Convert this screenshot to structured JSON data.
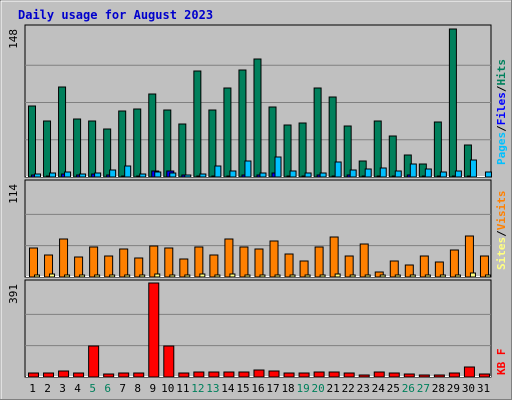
{
  "colors": {
    "frame_bg": "#c0c0c0",
    "plot_bg": "#c0c0c0",
    "title": "#0000cc",
    "hits": "#00805c",
    "files": "#0000ff",
    "pages": "#00c0ff",
    "visits": "#ff8000",
    "sites": "#ffff80",
    "kbytes": "#ff0000",
    "weekday": "#000000",
    "weekend": "#00805c",
    "separator": "#000000"
  },
  "chart_data": {
    "type": "bar",
    "title": "Daily usage for August 2023",
    "x": [
      "1",
      "2",
      "3",
      "4",
      "5",
      "6",
      "7",
      "8",
      "9",
      "10",
      "11",
      "12",
      "13",
      "14",
      "15",
      "16",
      "17",
      "18",
      "19",
      "20",
      "21",
      "22",
      "23",
      "24",
      "25",
      "26",
      "27",
      "28",
      "29",
      "30",
      "31"
    ],
    "weekend": [
      5,
      6,
      12,
      13,
      19,
      20,
      26,
      27
    ],
    "panels": [
      {
        "id": "hits",
        "ymax_label": "148",
        "ylim": [
          0,
          148
        ],
        "legend": [
          "Pages",
          "/",
          "Files",
          "/",
          "Hits"
        ],
        "series": [
          {
            "name": "Hits",
            "values": [
              71,
              56,
              89,
              58,
              56,
              48,
              66,
              68,
              82,
              67,
              53,
              105,
              67,
              88,
              106,
              117,
              70,
              52,
              54,
              88,
              79,
              51,
              16,
              56,
              41,
              22,
              13,
              55,
              147,
              32,
              0
            ]
          },
          {
            "name": "Files",
            "values": [
              2,
              1,
              3,
              2,
              3,
              2,
              1,
              1,
              6,
              6,
              2,
              1,
              1,
              1,
              2,
              2,
              4,
              1,
              1,
              2,
              1,
              2,
              1,
              1,
              1,
              2,
              1,
              1,
              1,
              1,
              0
            ]
          },
          {
            "name": "Pages",
            "values": [
              3,
              4,
              5,
              3,
              4,
              7,
              11,
              3,
              5,
              4,
              2,
              3,
              11,
              6,
              16,
              4,
              20,
              6,
              4,
              4,
              15,
              7,
              8,
              9,
              6,
              13,
              8,
              5,
              6,
              17,
              5
            ]
          }
        ]
      },
      {
        "id": "visits",
        "ymax_label": "114",
        "ylim": [
          0,
          114
        ],
        "legend": [
          "Sites",
          "/",
          "Visits"
        ],
        "series": [
          {
            "name": "Visits",
            "values": [
              35,
              27,
              46,
              24,
              36,
              26,
              34,
              23,
              38,
              35,
              22,
              36,
              27,
              46,
              36,
              34,
              44,
              28,
              19,
              36,
              49,
              25,
              40,
              6,
              20,
              15,
              26,
              18,
              33,
              50,
              25
            ]
          },
          {
            "name": "Sites",
            "values": [
              3,
              4,
              3,
              2,
              3,
              3,
              3,
              2,
              4,
              3,
              2,
              4,
              3,
              4,
              3,
              3,
              3,
              3,
              2,
              3,
              4,
              3,
              3,
              2,
              3,
              2,
              3,
              2,
              3,
              5,
              3
            ]
          }
        ]
      },
      {
        "id": "kbytes",
        "ymax_label": "391",
        "ylim": [
          0,
          391
        ],
        "legend": [
          "KB",
          "F"
        ],
        "series": [
          {
            "name": "KBytes",
            "values": [
              18,
              16,
              24,
              15,
              128,
              14,
              16,
              16,
              390,
              130,
              15,
              19,
              22,
              19,
              21,
              28,
              25,
              18,
              17,
              22,
              19,
              16,
              8,
              20,
              16,
              14,
              10,
              9,
              16,
              43,
              11
            ]
          }
        ]
      }
    ]
  }
}
